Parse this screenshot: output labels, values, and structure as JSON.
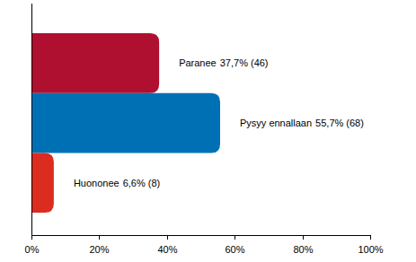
{
  "chart_data": {
    "type": "bar",
    "orientation": "horizontal",
    "categories": [
      "Paranee",
      "Pysyy ennallaan",
      "Huononee"
    ],
    "values": [
      37.7,
      55.7,
      6.6
    ],
    "value_labels": [
      "37,7% (46)",
      "55,7% (68)",
      "6,6% (8)"
    ],
    "colors": [
      "#b01030",
      "#0070b4",
      "#dc2c20"
    ],
    "data_labels": true,
    "xlim": [
      0,
      100
    ],
    "xticks": [
      {
        "value": 0,
        "label": "0%"
      },
      {
        "value": 20,
        "label": "20%"
      },
      {
        "value": 40,
        "label": "40%"
      },
      {
        "value": 60,
        "label": "60%"
      },
      {
        "value": 80,
        "label": "80%"
      },
      {
        "value": 100,
        "label": "100%"
      }
    ],
    "grid": false
  }
}
